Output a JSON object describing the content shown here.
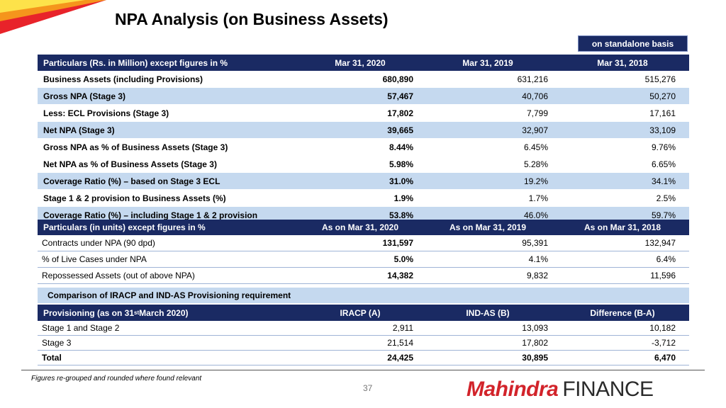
{
  "header": {
    "title": "NPA Analysis (on Business Assets)",
    "basis": "on standalone basis"
  },
  "table1": {
    "headers": [
      "Particulars (Rs. in Million) except figures in %",
      "Mar 31, 2020",
      "Mar 31, 2019",
      "Mar 31, 2018"
    ],
    "rows": [
      [
        "Business Assets (including Provisions)",
        "680,890",
        "631,216",
        "515,276"
      ],
      [
        "Gross NPA (Stage 3)",
        "57,467",
        "40,706",
        "50,270"
      ],
      [
        "Less: ECL Provisions (Stage 3)",
        "17,802",
        "7,799",
        "17,161"
      ],
      [
        "Net NPA (Stage 3)",
        "39,665",
        "32,907",
        "33,109"
      ],
      [
        "Gross NPA as % of Business Assets (Stage 3)",
        "8.44%",
        "6.45%",
        "9.76%"
      ],
      [
        "Net NPA as % of Business Assets (Stage 3)",
        "5.98%",
        "5.28%",
        "6.65%"
      ],
      [
        "Coverage Ratio (%) – based on Stage 3 ECL",
        "31.0%",
        "19.2%",
        "34.1%"
      ],
      [
        "Stage 1 & 2 provision to Business Assets (%)",
        "1.9%",
        "1.7%",
        "2.5%"
      ],
      [
        "Coverage Ratio (%) – including Stage 1 & 2 provision",
        "53.8%",
        "46.0%",
        "59.7%"
      ]
    ]
  },
  "table2": {
    "headers": [
      "Particulars (in units) except figures in %",
      "As on Mar 31, 2020",
      "As on Mar 31, 2019",
      "As on Mar 31, 2018"
    ],
    "rows": [
      [
        "Contracts under NPA (90 dpd)",
        "131,597",
        "95,391",
        "132,947"
      ],
      [
        "% of Live Cases under NPA",
        "5.0%",
        "4.1%",
        "6.4%"
      ],
      [
        "Repossessed Assets (out of above NPA)",
        "14,382",
        "9,832",
        "11,596"
      ]
    ]
  },
  "table3": {
    "section_title": "Comparison of IRACP and IND-AS Provisioning requirement",
    "header_prefix": "Provisioning (as on 31",
    "header_sup": "st",
    "header_suffix": " March 2020)",
    "headers": [
      "IRACP (A)",
      "IND-AS (B)",
      "Difference (B-A)"
    ],
    "rows": [
      [
        "Stage 1 and Stage 2",
        "2,911",
        "13,093",
        "10,182"
      ],
      [
        "Stage 3",
        "21,514",
        "17,802",
        "-3,712"
      ],
      [
        "Total",
        "24,425",
        "30,895",
        "6,470"
      ]
    ]
  },
  "footer": {
    "note": "Figures re-grouped and rounded where found relevant",
    "page_number": "37",
    "brand_main": "Mahindra",
    "brand_sub": "FINANCE"
  },
  "colors": {
    "header_navy": "#1a2a63",
    "row_blue": "#c5d9ef",
    "brand_red": "#d2232a"
  }
}
